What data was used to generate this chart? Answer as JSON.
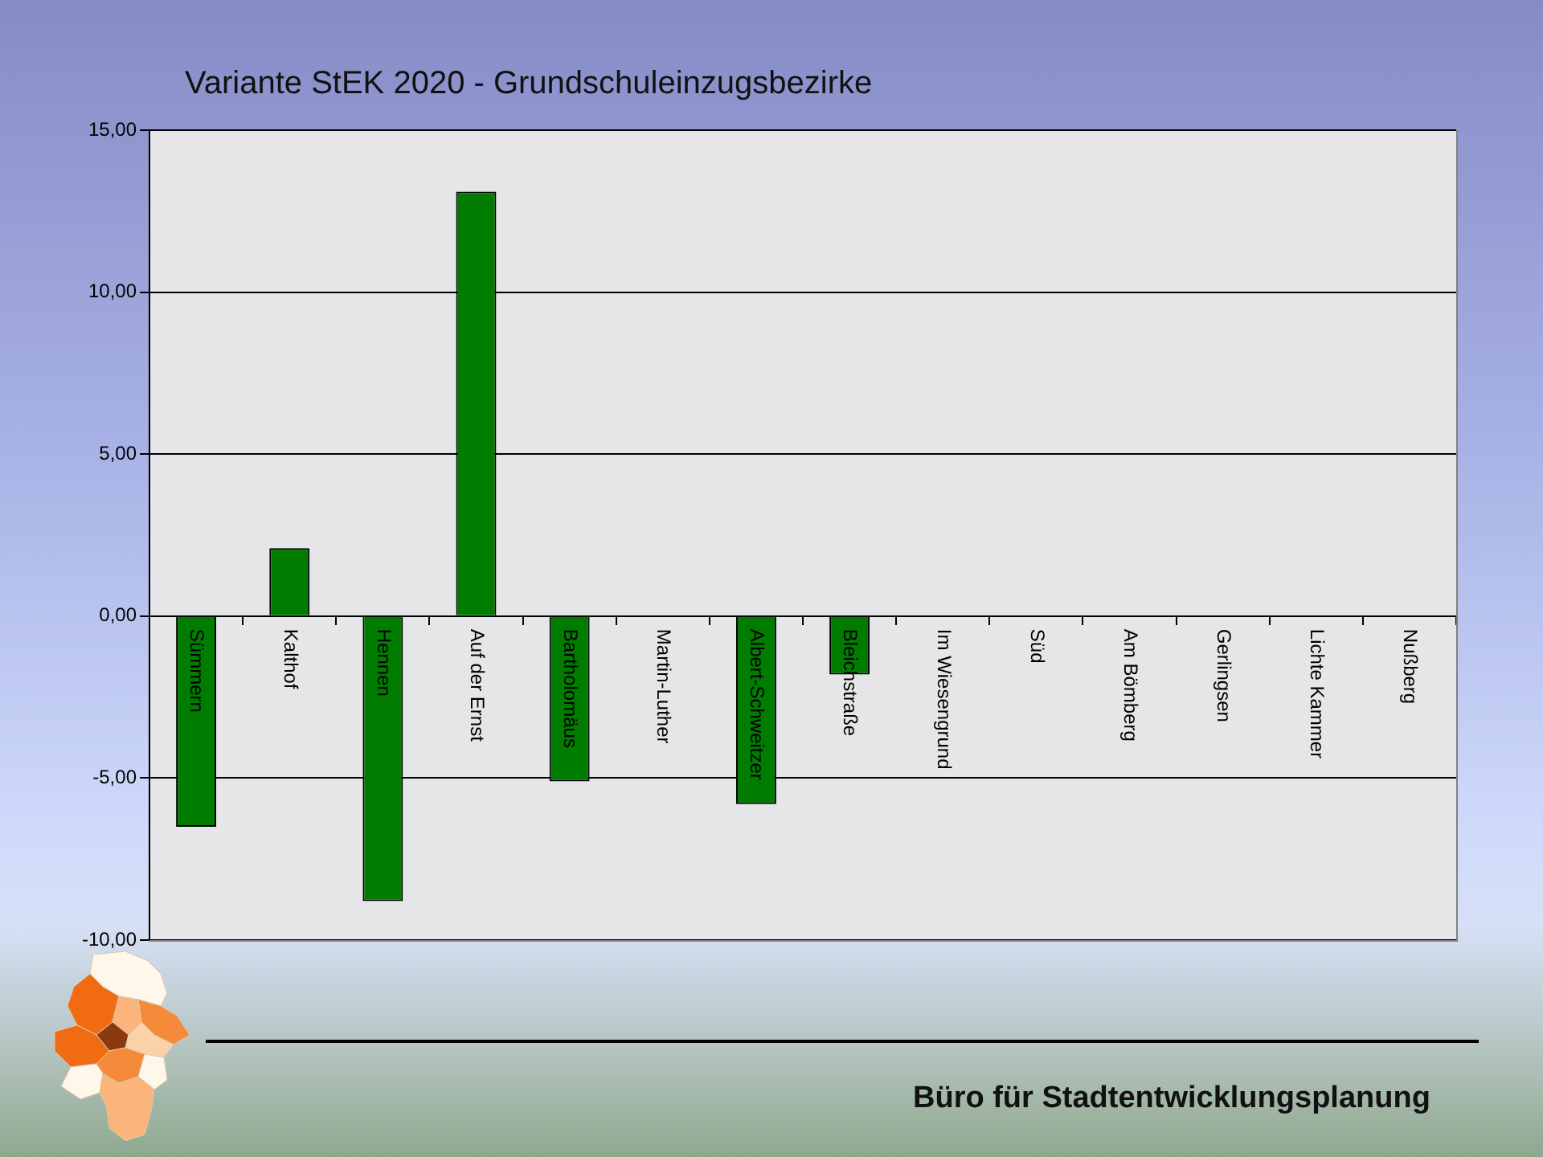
{
  "chart_data": {
    "type": "bar",
    "title": "Variante StEK 2020 - Grundschuleinzugsbezirke",
    "categories": [
      "Sümmern",
      "Kalthof",
      "Hennen",
      "Auf der Ernst",
      "Bartholomäus",
      "Martin-Luther",
      "Albert-Schweitzer",
      "Bleichstraße",
      "Im Wiesengrund",
      "Süd",
      "Am Bömberg",
      "Gerlingsen",
      "Lichte Kammer",
      "Nußberg"
    ],
    "values": [
      -6.5,
      2.1,
      -8.8,
      13.1,
      -5.1,
      0,
      -5.8,
      -1.8,
      0,
      0,
      0,
      0,
      0,
      0
    ],
    "color": "#007c00",
    "ylim": [
      -10,
      15
    ],
    "yticks": [
      {
        "value": -10,
        "label": "-10,00"
      },
      {
        "value": -5,
        "label": "-5,00"
      },
      {
        "value": 0,
        "label": "0,00"
      },
      {
        "value": 5,
        "label": "5,00"
      },
      {
        "value": 10,
        "label": "10,00"
      },
      {
        "value": 15,
        "label": "15,00"
      }
    ],
    "grid": "y",
    "annotations": [
      "Büro für Stadtentwicklungsplanung"
    ]
  }
}
